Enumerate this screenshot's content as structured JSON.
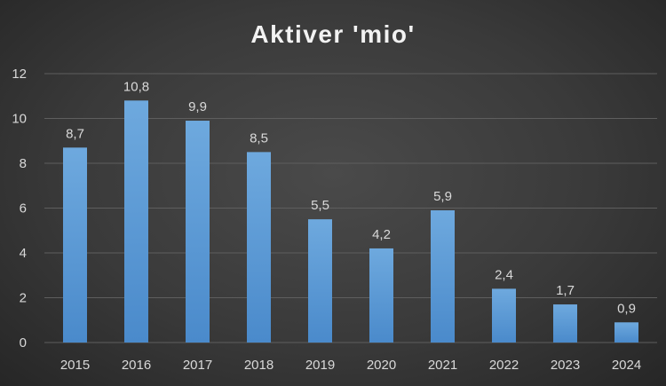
{
  "chart_data": {
    "type": "bar",
    "title": "Aktiver 'mio'",
    "categories": [
      "2015",
      "2016",
      "2017",
      "2018",
      "2019",
      "2020",
      "2021",
      "2022",
      "2023",
      "2024"
    ],
    "values": [
      8.7,
      10.8,
      9.9,
      8.5,
      5.5,
      4.2,
      5.9,
      2.4,
      1.7,
      0.9
    ],
    "value_labels": [
      "8,7",
      "10,8",
      "9,9",
      "8,5",
      "5,5",
      "4,2",
      "5,9",
      "2,4",
      "1,7",
      "0,9"
    ],
    "y_ticks": [
      0,
      2,
      4,
      6,
      8,
      10,
      12
    ],
    "ylim": [
      0,
      12
    ],
    "grid": true,
    "legend": "none",
    "bar_color": "#5b9bd5"
  }
}
